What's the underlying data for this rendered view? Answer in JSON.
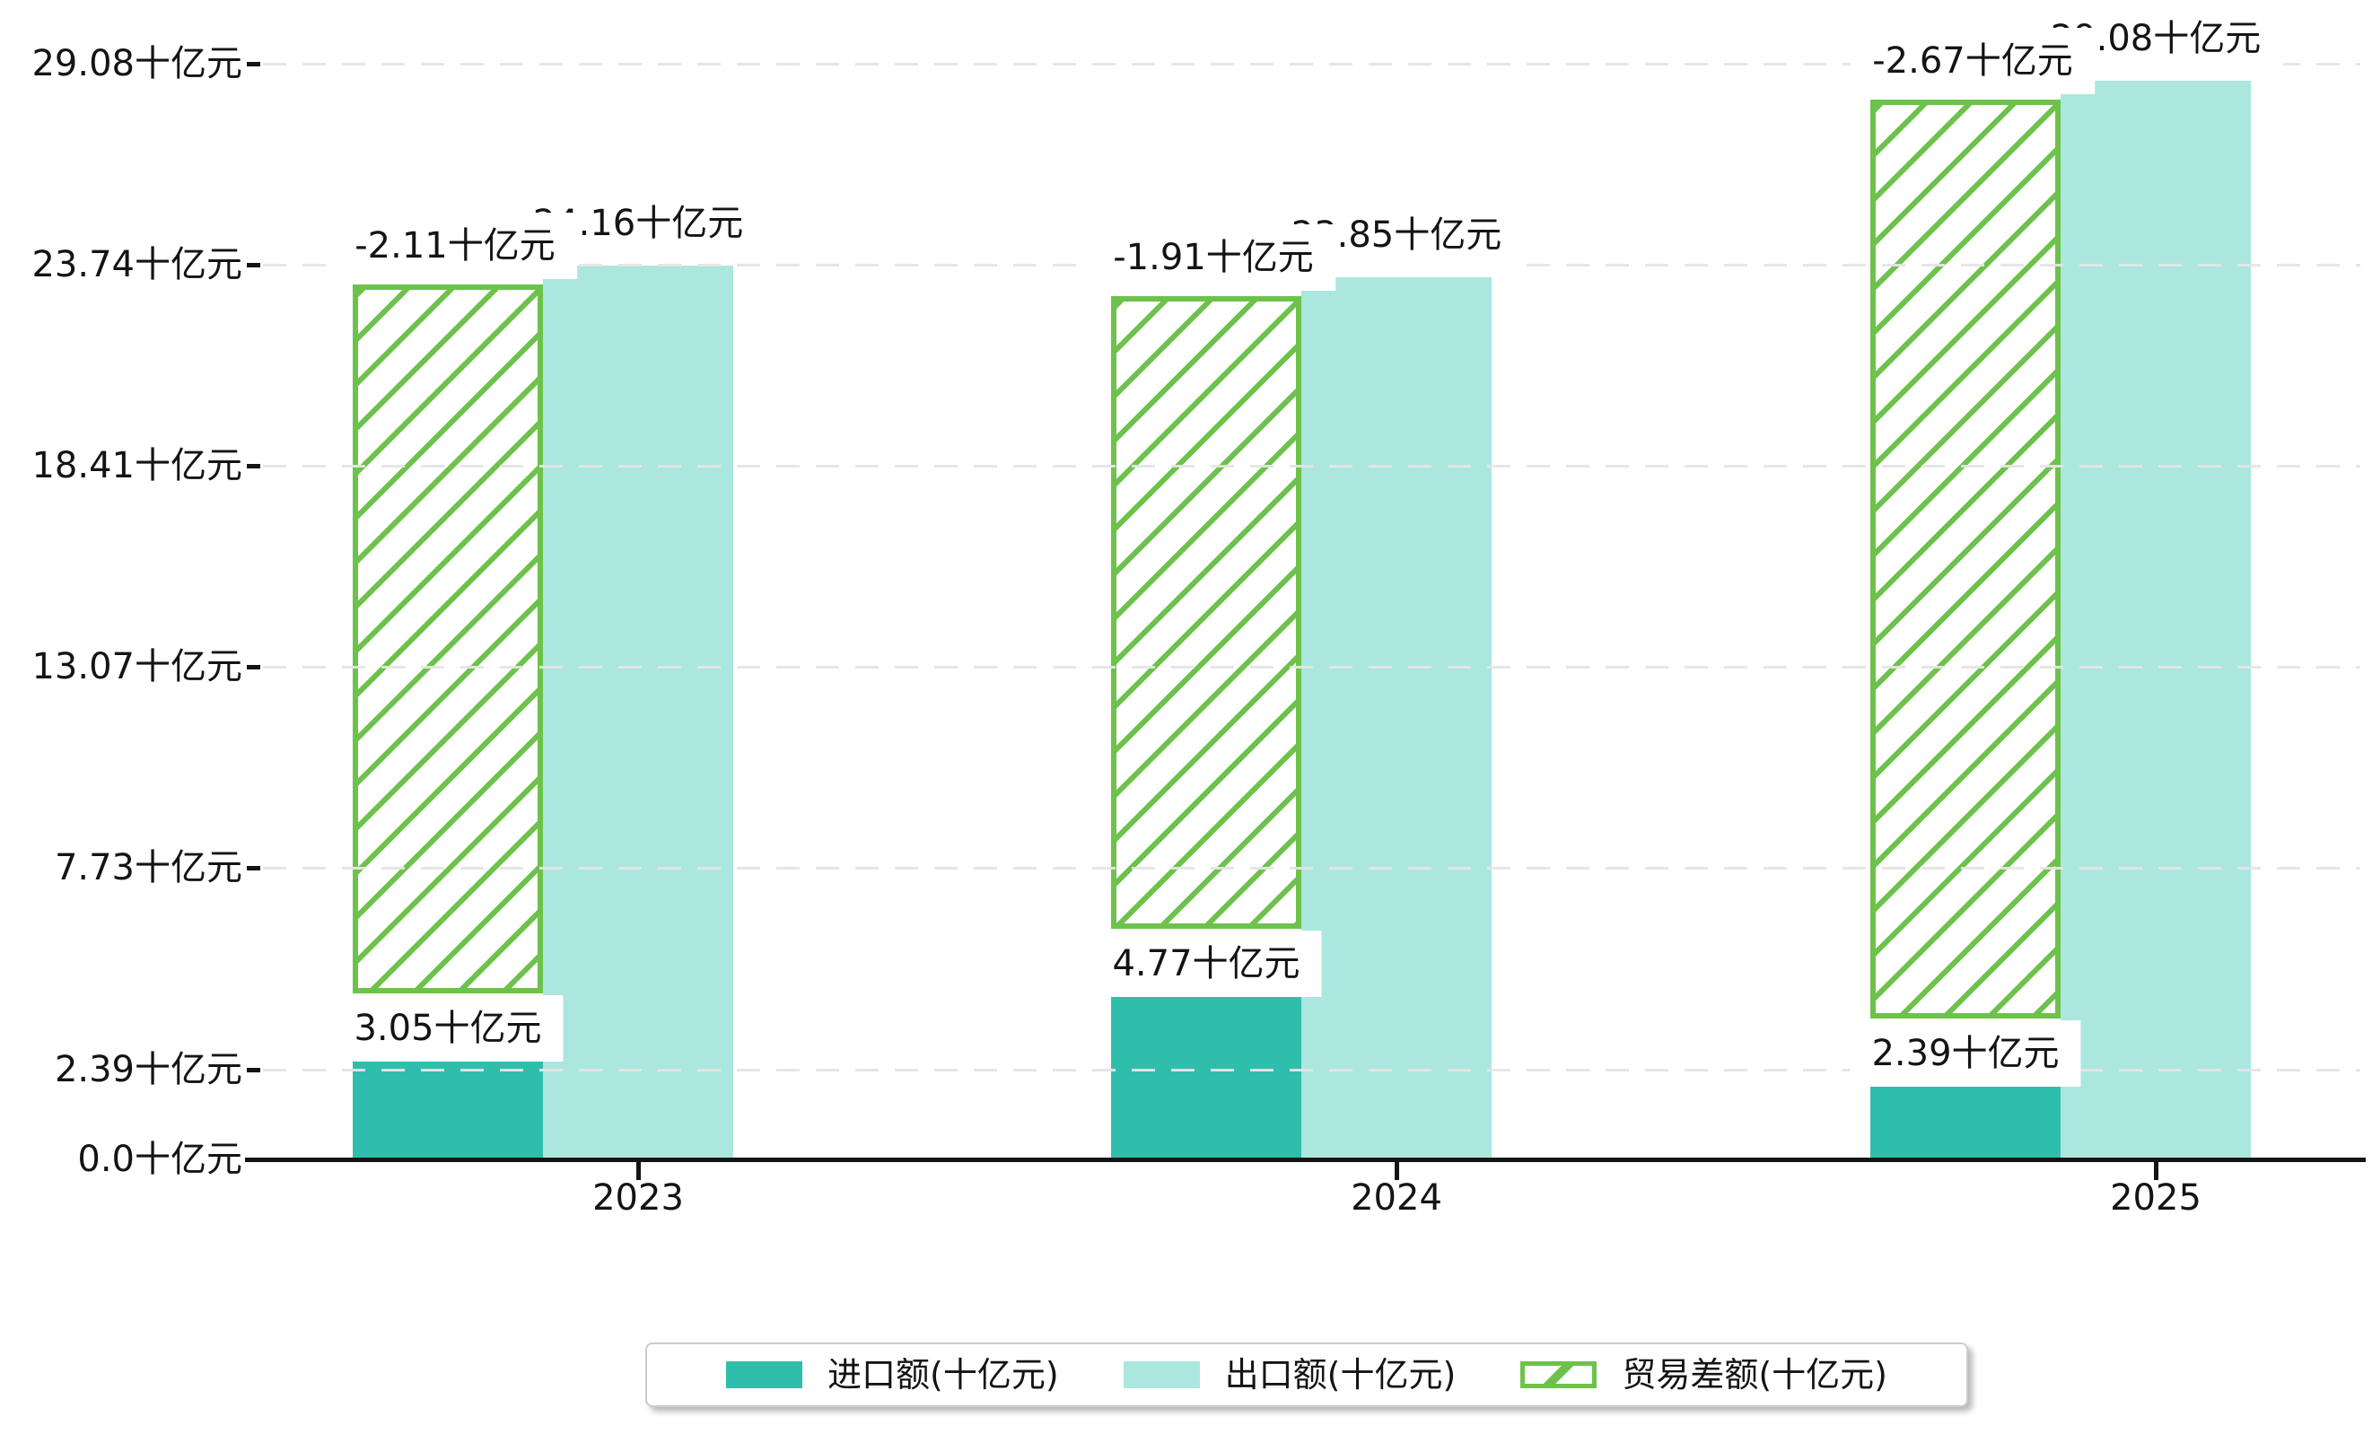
{
  "chart_data": {
    "type": "bar",
    "title": "",
    "unit": "十亿元",
    "categories": [
      "2023",
      "2024",
      "2025"
    ],
    "series": [
      {
        "name": "进口额(十亿元)",
        "values": [
          3.05,
          4.77,
          2.39
        ],
        "labels": [
          "3.05十亿元",
          "4.77十亿元",
          "2.39十亿元"
        ],
        "color": "#30beac",
        "style": "solid"
      },
      {
        "name": "出口额(十亿元)",
        "values": [
          24.16,
          23.85,
          29.08
        ],
        "labels": [
          "24.16十亿元",
          "23.85十亿元",
          "29.08十亿元"
        ],
        "color": "#abe7de",
        "style": "solid"
      },
      {
        "name": "贸易差额(十亿元)",
        "values": [
          -2.11,
          -1.91,
          -2.67
        ],
        "labels": [
          "-2.11十亿元",
          "-1.91十亿元",
          "-2.67十亿元"
        ],
        "color": "#6dc24b",
        "style": "hatched-outline"
      }
    ],
    "y_axis": {
      "ticks": [
        {
          "value": 0.0,
          "label": "0.0十亿元"
        },
        {
          "value": 2.39,
          "label": "2.39十亿元"
        },
        {
          "value": 7.73,
          "label": "7.73十亿元"
        },
        {
          "value": 13.07,
          "label": "13.07十亿元"
        },
        {
          "value": 18.41,
          "label": "18.41十亿元"
        },
        {
          "value": 23.74,
          "label": "23.74十亿元"
        },
        {
          "value": 29.08,
          "label": "29.08十亿元"
        }
      ],
      "range": [
        0,
        29.08
      ],
      "gridlines": "dashed"
    },
    "x_axis": {
      "tick_labels": [
        "2023",
        "2024",
        "2025"
      ]
    },
    "legend_position": "bottom-center",
    "colors": {
      "import_bar": "#30beac",
      "export_bar": "#abe7de",
      "balance_hatch": "#6dc24b",
      "gridline": "#e5e5e5",
      "axis": "#141414",
      "text": "#141414",
      "annotation_bg": "#ffffff",
      "legend_border": "#cccccc"
    }
  },
  "legend": {
    "items": [
      {
        "label": "进口额(十亿元)",
        "swatch": "import-solid-teal"
      },
      {
        "label": "出口额(十亿元)",
        "swatch": "export-solid-lightcyan"
      },
      {
        "label": "贸易差额(十亿元)",
        "swatch": "balance-green-hatched"
      }
    ]
  }
}
